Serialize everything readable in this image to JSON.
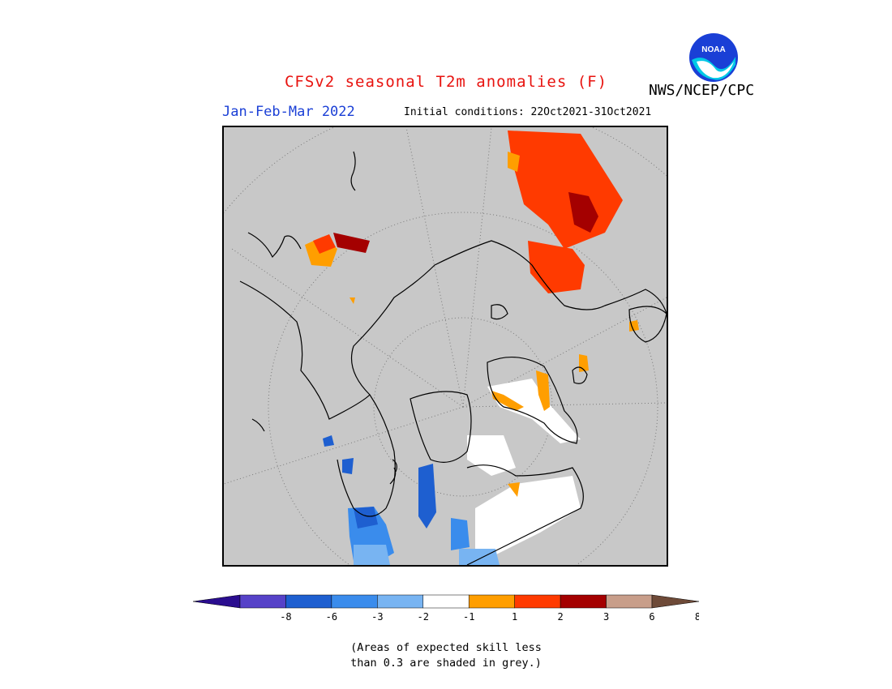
{
  "header": {
    "title": "CFSv2 seasonal T2m anomalies (F)",
    "season": "Jan-Feb-Mar 2022",
    "initial_conditions": "Initial conditions: 22Oct2021-31Oct2021",
    "agency": "NWS/NCEP/CPC",
    "logo_text": "NOAA"
  },
  "map": {
    "projection": "north polar stereographic",
    "background_color": "#c8c8c8"
  },
  "legend": {
    "tick_labels": [
      "-8",
      "-6",
      "-3",
      "-2",
      "-1",
      "1",
      "2",
      "3",
      "6",
      "8"
    ],
    "colors": {
      "below_-8": "#2a0d8f",
      "-8_to_-6": "#5642c8",
      "-6_to_-3": "#1e5fd0",
      "-3_to_-2": "#3a8cec",
      "-2_to_-1": "#78b4f2",
      "-1_to_1": "#ffffff",
      "1_to_2": "#ff9e00",
      "2_to_3": "#ff3a00",
      "3_to_6": "#a40000",
      "6_to_8": "#c89e8a",
      "above_8": "#6e4a38"
    }
  },
  "note": {
    "line1": "(Areas of expected skill less",
    "line2": "than 0.3 are shaded in grey.)"
  }
}
